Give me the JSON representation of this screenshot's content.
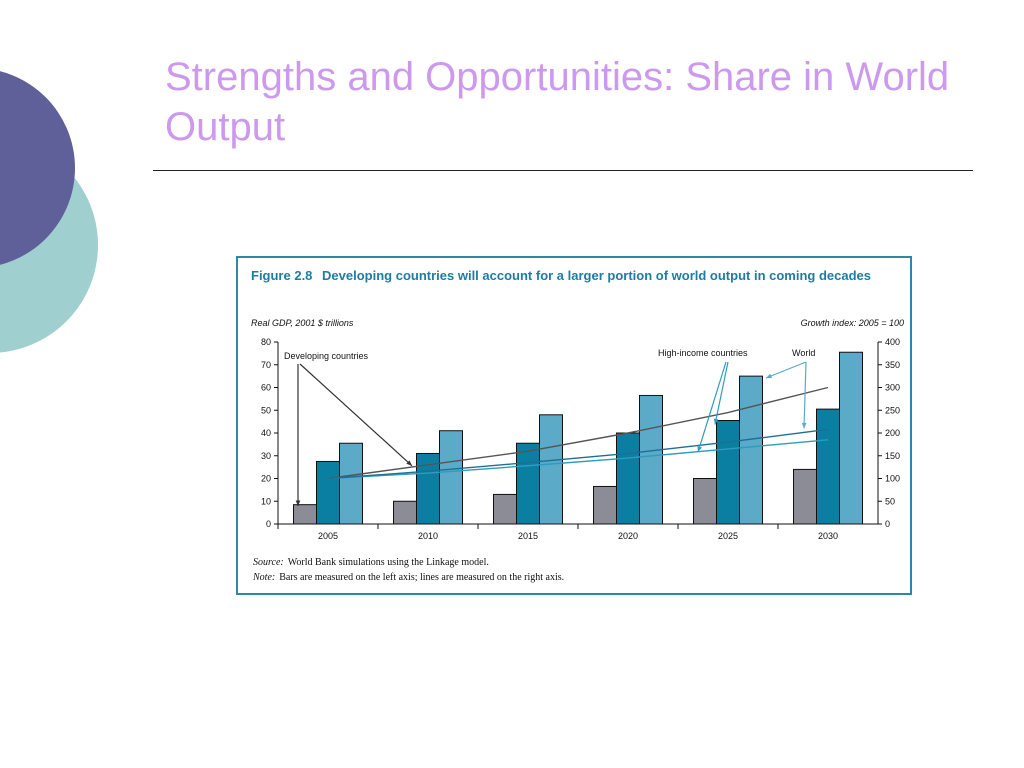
{
  "slide": {
    "title": "Strengths and Opportunities: Share in World Output"
  },
  "figure": {
    "label": "Figure 2.8",
    "caption": "Developing countries will account for a larger portion of world output in coming decades",
    "left_axis_title": "Real GDP, 2001 $ trillions",
    "right_axis_title": "Growth index: 2005 = 100",
    "source_label": "Source:",
    "source_text": "World Bank simulations using the Linkage model.",
    "note_label": "Note:",
    "note_text": "Bars are measured on the left axis; lines are measured on the right axis."
  },
  "colors": {
    "title": "#cc99ee",
    "frame": "#2e86a8",
    "circle_purple": "#5f5f9a",
    "circle_teal": "#9fd0cf",
    "bar_developing": "#8c8c96",
    "bar_high_income": "#0a7fa2",
    "bar_world": "#5aaac8",
    "line_developing": "#555555",
    "line_high_income": "#2d9cc0",
    "line_world": "#1d6f94"
  },
  "chart_data": {
    "type": "bar",
    "categories": [
      "2005",
      "2010",
      "2015",
      "2020",
      "2025",
      "2030"
    ],
    "series": [
      {
        "name": "Developing countries",
        "axis": "left",
        "values": [
          8.5,
          10,
          13,
          16.5,
          20,
          24
        ]
      },
      {
        "name": "High-income countries",
        "axis": "left",
        "values": [
          27.5,
          31,
          35.5,
          40,
          45.5,
          50.5
        ]
      },
      {
        "name": "World",
        "axis": "left",
        "values": [
          35.5,
          41,
          48,
          56.5,
          65,
          75.5
        ]
      }
    ],
    "lines": [
      {
        "name": "Developing countries",
        "axis": "right",
        "values": [
          100,
          130,
          160,
          200,
          245,
          300
        ]
      },
      {
        "name": "High-income countries",
        "axis": "right",
        "values": [
          100,
          112,
          128,
          145,
          165,
          185
        ]
      },
      {
        "name": "World",
        "axis": "right",
        "values": [
          100,
          116,
          135,
          155,
          180,
          208
        ]
      }
    ],
    "annotations": [
      "Developing countries",
      "High-income countries",
      "World"
    ],
    "left_ticks": [
      0,
      10,
      20,
      30,
      40,
      50,
      60,
      70,
      80
    ],
    "right_ticks": [
      0,
      50,
      100,
      150,
      200,
      250,
      300,
      350,
      400
    ],
    "ylim_left": [
      0,
      80
    ],
    "ylim_right": [
      0,
      400
    ],
    "grid": false
  }
}
